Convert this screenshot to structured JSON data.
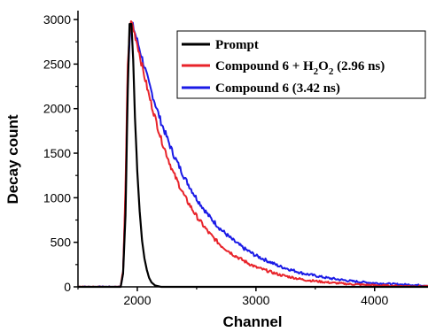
{
  "chart_data": {
    "type": "line",
    "xlabel": "Channel",
    "ylabel": "Decay count",
    "xlim": [
      1500,
      4450
    ],
    "ylim": [
      0,
      3100
    ],
    "x_ticks": [
      2000,
      3000,
      4000
    ],
    "y_ticks": [
      0,
      500,
      1000,
      1500,
      2000,
      2500,
      3000
    ],
    "legend_position": "top-right",
    "grid": false,
    "series": [
      {
        "name": "Prompt",
        "color": "#000000",
        "x": [
          1500,
          1860,
          1880,
          1900,
          1920,
          1935,
          1950,
          1965,
          1980,
          2000,
          2020,
          2040,
          2060,
          2080,
          2100,
          2120,
          2150,
          2200,
          2300,
          4450
        ],
        "y": [
          0,
          0,
          150,
          800,
          2200,
          2950,
          2950,
          2550,
          1900,
          1300,
          850,
          520,
          320,
          190,
          100,
          50,
          15,
          0,
          0,
          0
        ]
      },
      {
        "name": "Compound 6 + H2O2 (2.96 ns)",
        "name_parts": [
          "Compound 6 + H",
          "2",
          "O",
          "2",
          " (2.96 ns)"
        ],
        "color": "#e8232a",
        "x": [
          1500,
          1860,
          1880,
          1900,
          1920,
          1940,
          1955,
          1970,
          2000,
          2050,
          2100,
          2200,
          2300,
          2400,
          2500,
          2600,
          2700,
          2800,
          2900,
          3000,
          3200,
          3400,
          3600,
          3800,
          4000,
          4200,
          4450
        ],
        "y": [
          0,
          0,
          180,
          1100,
          2500,
          2950,
          2960,
          2880,
          2730,
          2420,
          2140,
          1660,
          1290,
          1010,
          790,
          610,
          470,
          370,
          290,
          220,
          135,
          80,
          50,
          30,
          18,
          10,
          5
        ]
      },
      {
        "name": "Compound 6 (3.42 ns)",
        "color": "#1a1ae6",
        "x": [
          1500,
          1860,
          1880,
          1900,
          1920,
          1940,
          1955,
          1970,
          2000,
          2050,
          2100,
          2200,
          2300,
          2400,
          2500,
          2600,
          2700,
          2800,
          2900,
          3000,
          3200,
          3400,
          3600,
          3800,
          4000,
          4200,
          4450
        ],
        "y": [
          0,
          0,
          160,
          1000,
          2400,
          2900,
          2950,
          2900,
          2760,
          2520,
          2270,
          1850,
          1500,
          1220,
          990,
          800,
          650,
          530,
          430,
          350,
          230,
          150,
          100,
          65,
          42,
          28,
          15
        ]
      }
    ]
  }
}
